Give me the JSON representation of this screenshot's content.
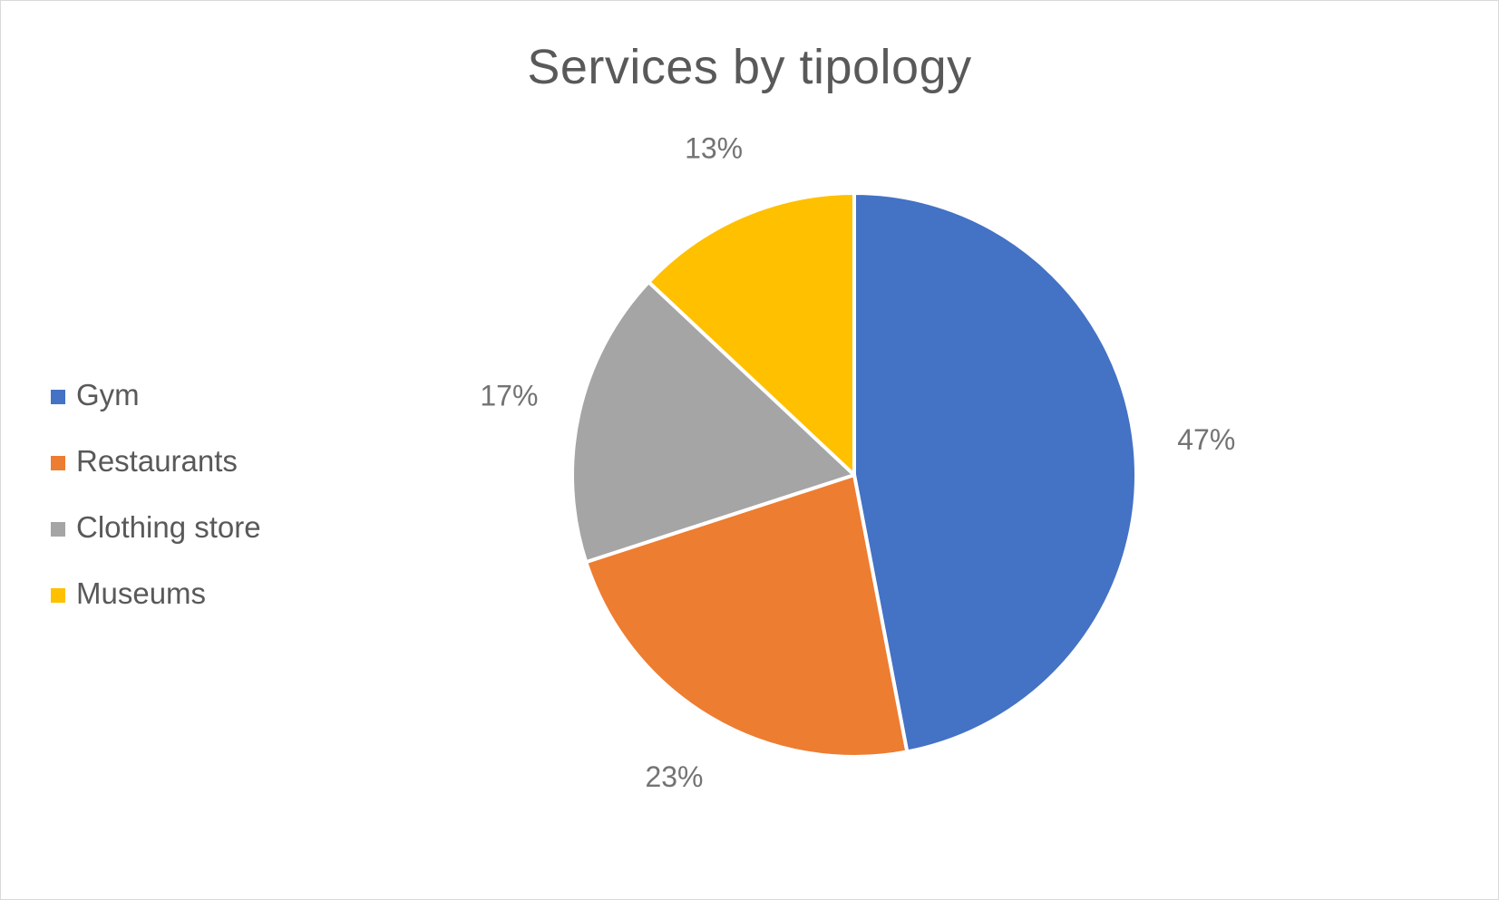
{
  "chart_data": {
    "type": "pie",
    "title": "Services by tipology",
    "categories": [
      "Gym",
      "Restaurants",
      "Clothing store",
      "Museums"
    ],
    "values": [
      47,
      23,
      17,
      13
    ],
    "data_labels": [
      "47%",
      "23%",
      "17%",
      "13%"
    ],
    "colors": [
      "#4472c4",
      "#ed7d31",
      "#a5a5a5",
      "#ffc000"
    ],
    "legend_placement": "left"
  }
}
